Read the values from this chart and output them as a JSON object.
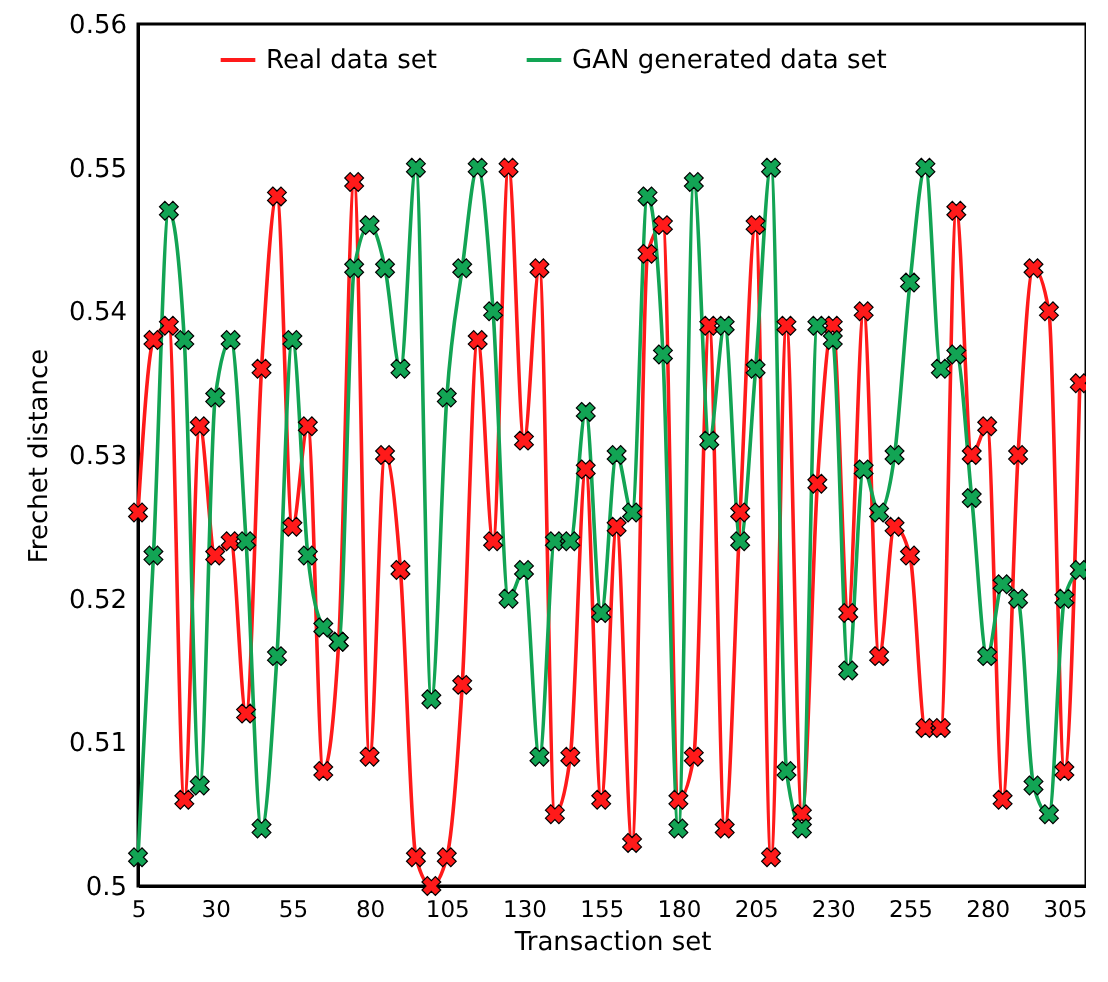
{
  "chart_data": {
    "type": "line",
    "xlabel": "Transaction set",
    "ylabel": "Frechet distance",
    "x": [
      5,
      10,
      15,
      20,
      25,
      30,
      35,
      40,
      45,
      50,
      55,
      60,
      65,
      70,
      75,
      80,
      85,
      90,
      95,
      100,
      105,
      110,
      115,
      120,
      125,
      130,
      135,
      140,
      145,
      150,
      155,
      160,
      165,
      170,
      175,
      180,
      185,
      190,
      195,
      200,
      205,
      210,
      215,
      220,
      225,
      230,
      235,
      240,
      245,
      250,
      255,
      260,
      265,
      270,
      275,
      280,
      285,
      290,
      295,
      300,
      305,
      310
    ],
    "series": [
      {
        "name": "Real data set",
        "color": "#ff1a1a",
        "values": [
          0.526,
          0.538,
          0.539,
          0.506,
          0.532,
          0.523,
          0.524,
          0.512,
          0.536,
          0.548,
          0.525,
          0.532,
          0.508,
          0.517,
          0.549,
          0.509,
          0.53,
          0.522,
          0.502,
          0.5,
          0.502,
          0.514,
          0.538,
          0.524,
          0.55,
          0.531,
          0.543,
          0.505,
          0.509,
          0.529,
          0.506,
          0.525,
          0.503,
          0.544,
          0.546,
          0.506,
          0.509,
          0.539,
          0.504,
          0.526,
          0.546,
          0.502,
          0.539,
          0.505,
          0.528,
          0.539,
          0.519,
          0.54,
          0.516,
          0.525,
          0.523,
          0.511,
          0.511,
          0.547,
          0.53,
          0.532,
          0.506,
          0.53,
          0.543,
          0.54,
          0.508,
          0.535
        ]
      },
      {
        "name": "GAN generated data set",
        "color": "#12a454",
        "values": [
          0.502,
          0.523,
          0.547,
          0.538,
          0.507,
          0.534,
          0.538,
          0.524,
          0.504,
          0.516,
          0.538,
          0.523,
          0.518,
          0.517,
          0.543,
          0.546,
          0.543,
          0.536,
          0.55,
          0.513,
          0.534,
          0.543,
          0.55,
          0.54,
          0.52,
          0.522,
          0.509,
          0.524,
          0.524,
          0.533,
          0.519,
          0.53,
          0.526,
          0.548,
          0.537,
          0.504,
          0.549,
          0.531,
          0.539,
          0.524,
          0.536,
          0.55,
          0.508,
          0.504,
          0.539,
          0.538,
          0.515,
          0.529,
          0.526,
          0.53,
          0.542,
          0.55,
          0.536,
          0.537,
          0.527,
          0.516,
          0.521,
          0.52,
          0.507,
          0.505,
          0.52,
          0.522
        ]
      }
    ],
    "xlim": [
      5,
      312
    ],
    "xticks": [
      5,
      30,
      55,
      80,
      105,
      130,
      155,
      180,
      205,
      230,
      255,
      280,
      305
    ],
    "ylim": [
      0.5,
      0.56
    ],
    "yticks": [
      0.5,
      0.51,
      0.52,
      0.53,
      0.54,
      0.55,
      0.56
    ],
    "grid": false,
    "legend": "top",
    "marker": "cross",
    "line_style": "solid"
  }
}
